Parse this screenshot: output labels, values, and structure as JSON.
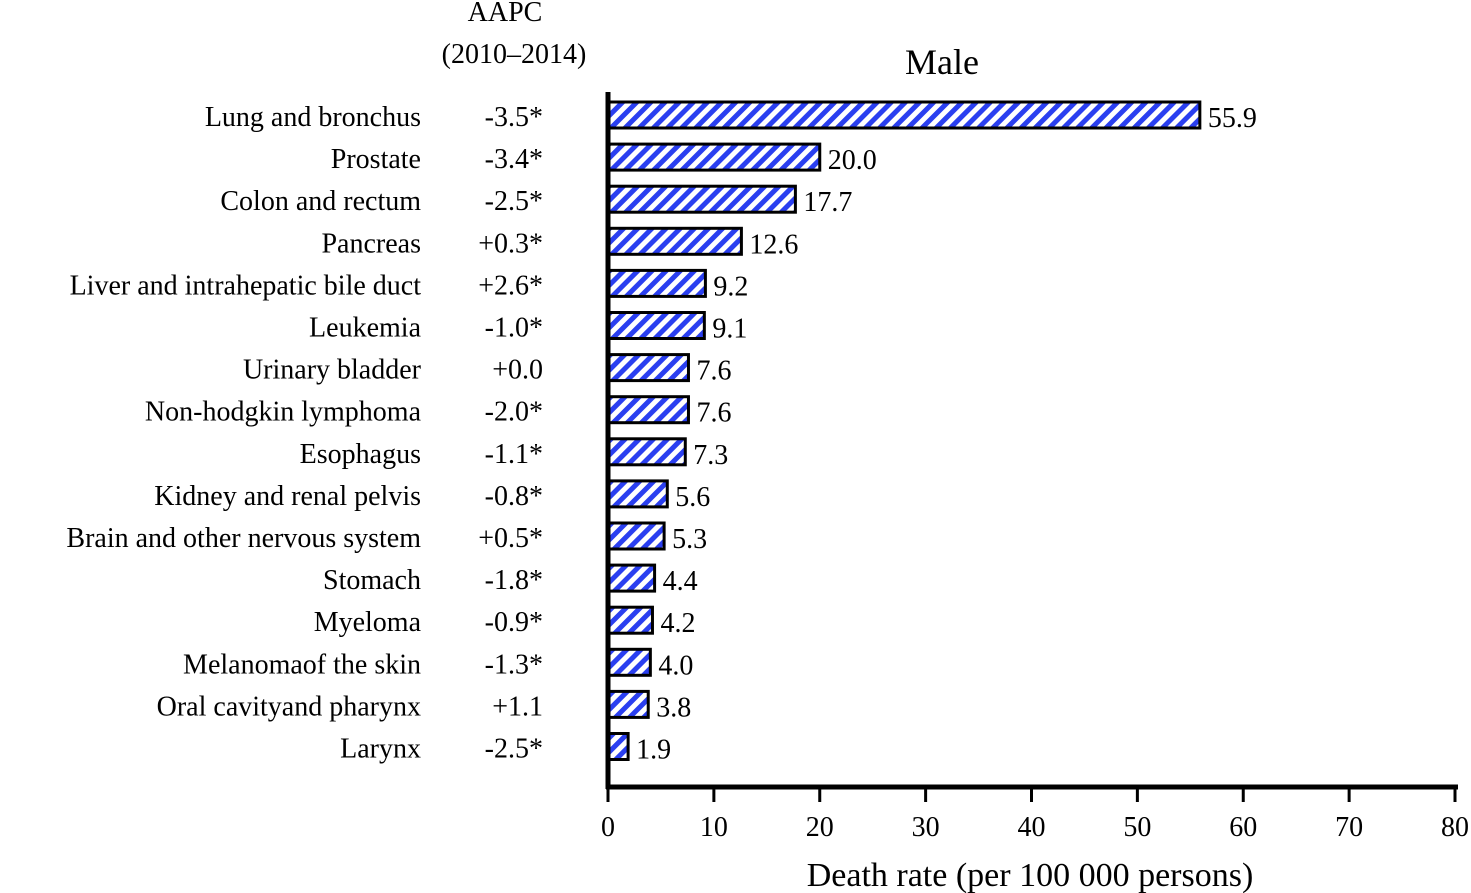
{
  "chart_data": {
    "type": "bar",
    "orientation": "horizontal",
    "title": "Male",
    "aapc_header": [
      "AAPC",
      "(2010–2014)"
    ],
    "categories": [
      "Lung and bronchus",
      "Prostate",
      "Colon and rectum",
      "Pancreas",
      "Liver and intrahepatic bile duct",
      "Leukemia",
      "Urinary bladder",
      "Non-hodgkin lymphoma",
      "Esophagus",
      "Kidney and renal pelvis",
      "Brain and other nervous system",
      "Stomach",
      "Myeloma",
      "Melanomaof the skin",
      "Oral cavityand pharynx",
      "Larynx"
    ],
    "aapc": [
      "-3.5*",
      "-3.4*",
      "-2.5*",
      "+0.3*",
      "+2.6*",
      "-1.0*",
      "+0.0",
      "-2.0*",
      "-1.1*",
      "-0.8*",
      "+0.5*",
      "-1.8*",
      "-0.9*",
      "-1.3*",
      "+1.1",
      "-2.5*"
    ],
    "values": [
      55.9,
      20.0,
      17.7,
      12.6,
      9.2,
      9.1,
      7.6,
      7.6,
      7.3,
      5.6,
      5.3,
      4.4,
      4.2,
      4.0,
      3.8,
      1.9
    ],
    "value_labels": [
      "55.9",
      "20.0",
      "17.7",
      "12.6",
      "9.2",
      "9.1",
      "7.6",
      "7.6",
      "7.3",
      "5.6",
      "5.3",
      "4.4",
      "4.2",
      "4.0",
      "3.8",
      "1.9"
    ],
    "xlabel": "Death rate (per 100 000 persons)",
    "ylabel": "",
    "xlim": [
      0,
      80
    ],
    "xticks": [
      0,
      10,
      20,
      30,
      40,
      50,
      60,
      70,
      80
    ],
    "grid": false,
    "bar_color": "#2a3ff0",
    "bar_pattern": "diagonal-hatch",
    "legend": "none"
  }
}
